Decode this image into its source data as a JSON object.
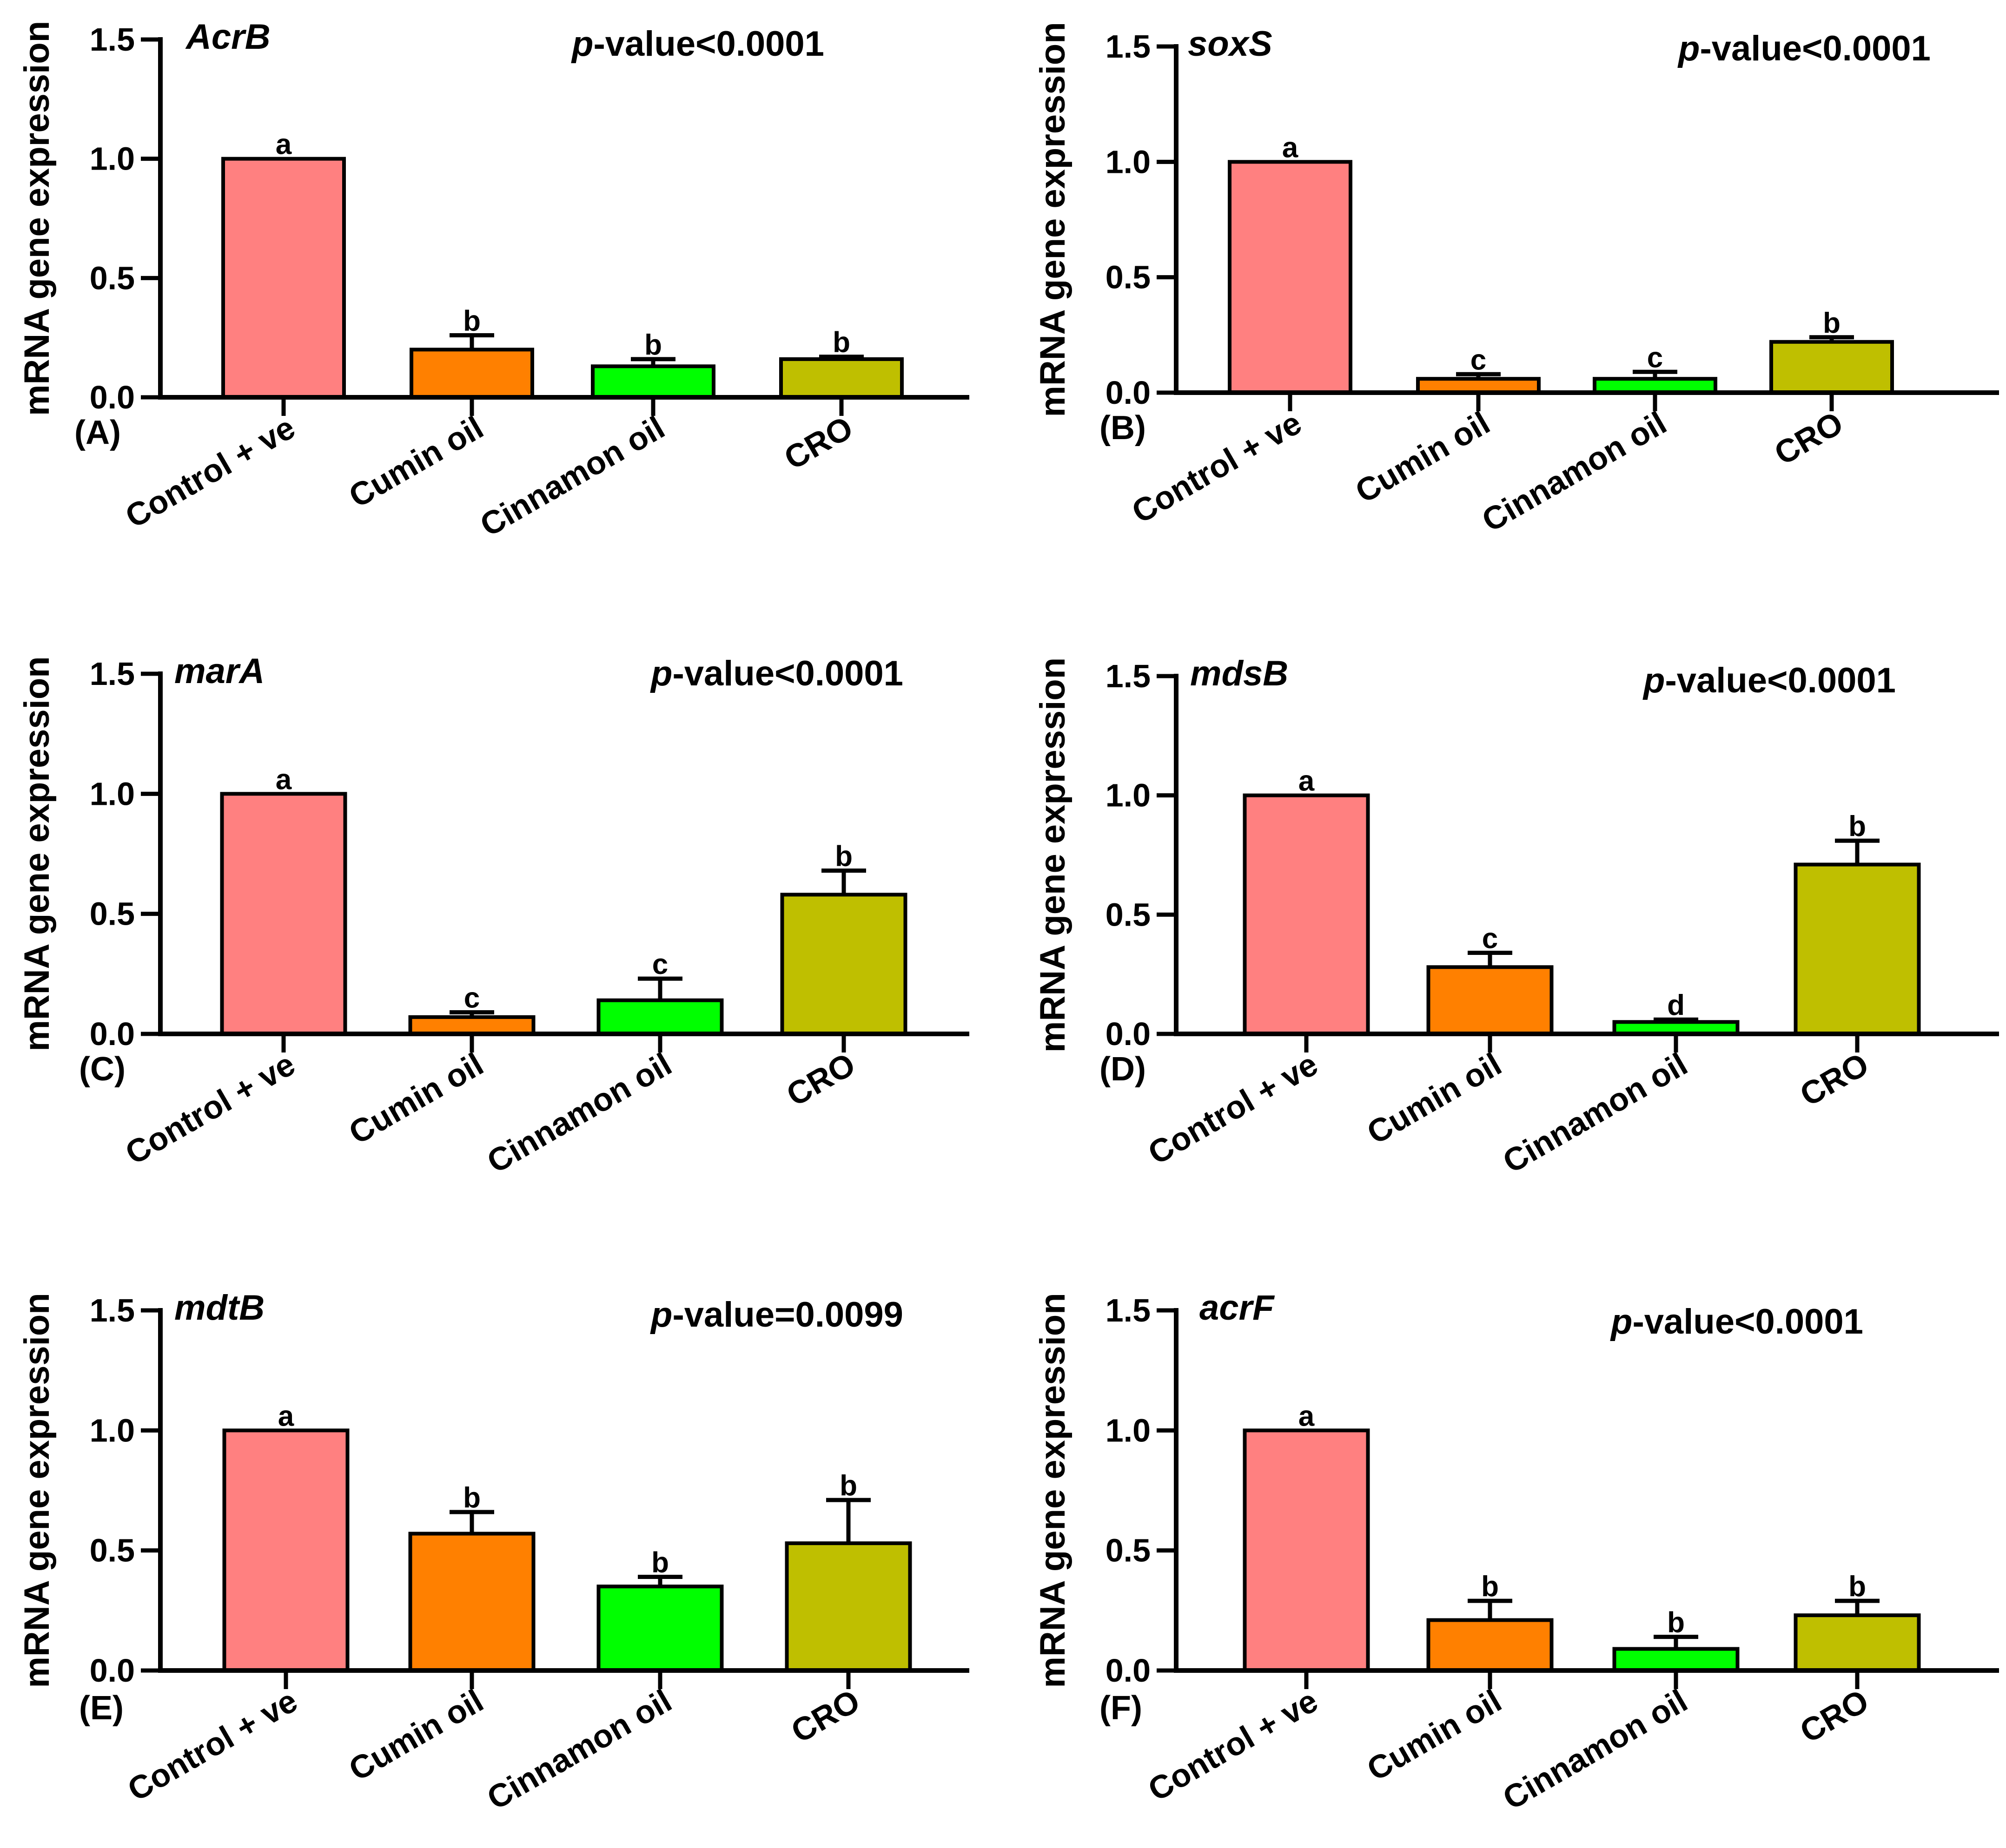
{
  "chart_data": [
    {
      "type": "bar",
      "panel_label": "(A)",
      "title": "AcrB",
      "p_prefix": "p",
      "p_suffix": "-value<0.0001",
      "ylabel": "mRNA gene expression",
      "xlabel": "",
      "ylim": [
        0,
        1.5
      ],
      "yticks": [
        "0.0",
        "0.5",
        "1.0",
        "1.5"
      ],
      "categories": [
        "Control + ve",
        "Cumin oil",
        "Cinnamon oil",
        "CRO"
      ],
      "values": [
        1.0,
        0.2,
        0.13,
        0.16
      ],
      "errors": [
        0,
        0.06,
        0.03,
        0.01
      ],
      "significance": [
        "a",
        "b",
        "b",
        "b"
      ],
      "colors": [
        "#FF8080",
        "#FF8000",
        "#00FF00",
        "#BFBF00"
      ]
    },
    {
      "type": "bar",
      "panel_label": "(B)",
      "title": "soxS",
      "p_prefix": "p",
      "p_suffix": "-value<0.0001",
      "ylabel": "mRNA gene expression",
      "xlabel": "",
      "ylim": [
        0,
        1.5
      ],
      "yticks": [
        "0.0",
        "0.5",
        "1.0",
        "1.5"
      ],
      "categories": [
        "Control + ve",
        "Cumin oil",
        "Cinnamon oil",
        "CRO"
      ],
      "values": [
        1.0,
        0.06,
        0.06,
        0.22
      ],
      "errors": [
        0,
        0.02,
        0.03,
        0.02
      ],
      "significance": [
        "a",
        "c",
        "c",
        "b"
      ],
      "colors": [
        "#FF8080",
        "#FF8000",
        "#00FF00",
        "#BFBF00"
      ]
    },
    {
      "type": "bar",
      "panel_label": "(C)",
      "title": "marA",
      "p_prefix": "p",
      "p_suffix": "-value<0.0001",
      "ylabel": "mRNA gene expression",
      "xlabel": "",
      "ylim": [
        0,
        1.5
      ],
      "yticks": [
        "0.0",
        "0.5",
        "1.0",
        "1.5"
      ],
      "categories": [
        "Control + ve",
        "Cumin oil",
        "Cinnamon oil",
        "CRO"
      ],
      "values": [
        1.0,
        0.07,
        0.14,
        0.58
      ],
      "errors": [
        0,
        0.02,
        0.09,
        0.1
      ],
      "significance": [
        "a",
        "c",
        "c",
        "b"
      ],
      "colors": [
        "#FF8080",
        "#FF8000",
        "#00FF00",
        "#BFBF00"
      ]
    },
    {
      "type": "bar",
      "panel_label": "(D)",
      "title": "mdsB",
      "p_prefix": "p",
      "p_suffix": "-value<0.0001",
      "ylabel": "mRNA gene expression",
      "xlabel": "",
      "ylim": [
        0,
        1.5
      ],
      "yticks": [
        "0.0",
        "0.5",
        "1.0",
        "1.5"
      ],
      "categories": [
        "Control + ve",
        "Cumin oil",
        "Cinnamon oil",
        "CRO"
      ],
      "values": [
        1.0,
        0.28,
        0.05,
        0.71
      ],
      "errors": [
        0,
        0.06,
        0.01,
        0.1
      ],
      "significance": [
        "a",
        "c",
        "d",
        "b"
      ],
      "colors": [
        "#FF8080",
        "#FF8000",
        "#00FF00",
        "#BFBF00"
      ]
    },
    {
      "type": "bar",
      "panel_label": "(E)",
      "title": "mdtB",
      "p_prefix": "p",
      "p_suffix": "-value=0.0099",
      "ylabel": "mRNA gene expression",
      "xlabel": "",
      "ylim": [
        0,
        1.5
      ],
      "yticks": [
        "0.0",
        "0.5",
        "1.0",
        "1.5"
      ],
      "categories": [
        "Control + ve",
        "Cumin oil",
        "Cinnamon oil",
        "CRO"
      ],
      "values": [
        1.0,
        0.57,
        0.35,
        0.53
      ],
      "errors": [
        0,
        0.09,
        0.04,
        0.18
      ],
      "significance": [
        "a",
        "b",
        "b",
        "b"
      ],
      "colors": [
        "#FF8080",
        "#FF8000",
        "#00FF00",
        "#BFBF00"
      ]
    },
    {
      "type": "bar",
      "panel_label": "(F)",
      "title": "acrF",
      "p_prefix": "p",
      "p_suffix": "-value<0.0001",
      "ylabel": "mRNA gene expression",
      "xlabel": "",
      "ylim": [
        0,
        1.5
      ],
      "yticks": [
        "0.0",
        "0.5",
        "1.0",
        "1.5"
      ],
      "categories": [
        "Control + ve",
        "Cumin oil",
        "Cinnamon oil",
        "CRO"
      ],
      "values": [
        1.0,
        0.21,
        0.09,
        0.23
      ],
      "errors": [
        0,
        0.08,
        0.05,
        0.06
      ],
      "significance": [
        "a",
        "b",
        "b",
        "b"
      ],
      "colors": [
        "#FF8080",
        "#FF8000",
        "#00FF00",
        "#BFBF00"
      ]
    }
  ]
}
